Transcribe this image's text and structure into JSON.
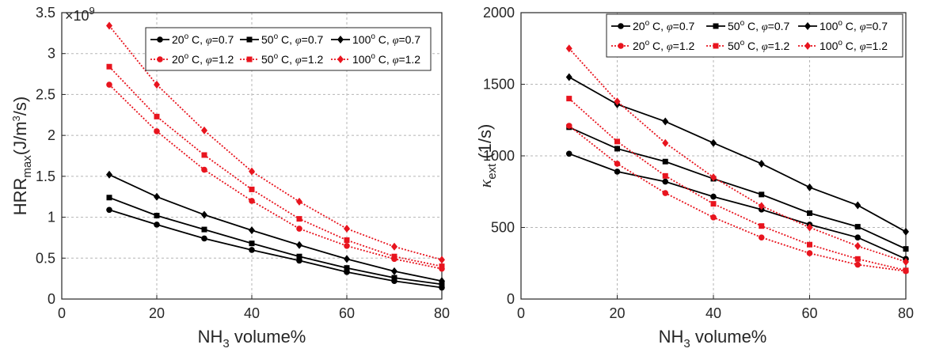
{
  "chart_data": [
    {
      "type": "line",
      "id": "left",
      "x": [
        10,
        20,
        30,
        40,
        50,
        60,
        70,
        80
      ],
      "xlim": [
        0,
        80
      ],
      "ylim": [
        0,
        3.5
      ],
      "xticks": [
        "0",
        "20",
        "40",
        "60",
        "80"
      ],
      "yticks": [
        "0",
        "0.5",
        "1",
        "1.5",
        "2",
        "2.5",
        "3",
        "3.5"
      ],
      "xlabel": {
        "main": "NH",
        "sub": "3",
        "rest": " volume%"
      },
      "ylabel": {
        "main": "HRR",
        "sub": "max",
        "paren_open": "(J/m",
        "sup": "3",
        "paren_close": "/s)"
      },
      "multiplier": {
        "base": "×10",
        "exp": "9"
      },
      "grid": true,
      "legend_position": "top-right",
      "series": [
        {
          "name": "20o C, phi=0.7",
          "temp": "20",
          "phi": "0.7",
          "color": "#000000",
          "style": "solid",
          "marker": "circle",
          "values": [
            1.09,
            0.91,
            0.74,
            0.6,
            0.47,
            0.33,
            0.22,
            0.14
          ]
        },
        {
          "name": "50o C, phi=0.7",
          "temp": "50",
          "phi": "0.7",
          "color": "#000000",
          "style": "solid",
          "marker": "square",
          "values": [
            1.24,
            1.02,
            0.85,
            0.68,
            0.52,
            0.38,
            0.26,
            0.18
          ]
        },
        {
          "name": "100o C, phi=0.7",
          "temp": "100",
          "phi": "0.7",
          "color": "#000000",
          "style": "solid",
          "marker": "diamond",
          "values": [
            1.52,
            1.25,
            1.03,
            0.84,
            0.66,
            0.49,
            0.34,
            0.22
          ]
        },
        {
          "name": "20o C, phi=1.2",
          "temp": "20",
          "phi": "1.2",
          "color": "#e8141e",
          "style": "dotted",
          "marker": "circle",
          "values": [
            2.62,
            2.05,
            1.58,
            1.2,
            0.86,
            0.65,
            0.49,
            0.37
          ]
        },
        {
          "name": "50o C, phi=1.2",
          "temp": "50",
          "phi": "1.2",
          "color": "#e8141e",
          "style": "dotted",
          "marker": "square",
          "values": [
            2.84,
            2.23,
            1.76,
            1.34,
            0.98,
            0.72,
            0.52,
            0.4
          ]
        },
        {
          "name": "100o C, phi=1.2",
          "temp": "100",
          "phi": "1.2",
          "color": "#e8141e",
          "style": "dotted",
          "marker": "diamond",
          "values": [
            3.34,
            2.62,
            2.06,
            1.56,
            1.19,
            0.86,
            0.64,
            0.48
          ]
        }
      ]
    },
    {
      "type": "line",
      "id": "right",
      "x": [
        10,
        20,
        30,
        40,
        50,
        60,
        70,
        80
      ],
      "xlim": [
        0,
        80
      ],
      "ylim": [
        0,
        2000
      ],
      "xticks": [
        "0",
        "20",
        "40",
        "60",
        "80"
      ],
      "yticks": [
        "0",
        "500",
        "1000",
        "1500",
        "2000"
      ],
      "xlabel": {
        "main": "NH",
        "sub": "3",
        "rest": " volume%"
      },
      "ylabel": {
        "main": "κ",
        "sub": "ext",
        "rest": " (1/s)"
      },
      "grid": true,
      "legend_position": "top-right",
      "series": [
        {
          "name": "20o C, phi=0.7",
          "temp": "20",
          "phi": "0.7",
          "color": "#000000",
          "style": "solid",
          "marker": "circle",
          "values": [
            1015,
            890,
            820,
            715,
            625,
            520,
            430,
            280
          ]
        },
        {
          "name": "50o C, phi=0.7",
          "temp": "50",
          "phi": "0.7",
          "color": "#000000",
          "style": "solid",
          "marker": "square",
          "values": [
            1200,
            1050,
            960,
            840,
            730,
            600,
            505,
            350
          ]
        },
        {
          "name": "100o C, phi=0.7",
          "temp": "100",
          "phi": "0.7",
          "color": "#000000",
          "style": "solid",
          "marker": "diamond",
          "values": [
            1550,
            1360,
            1240,
            1090,
            945,
            780,
            655,
            470
          ]
        },
        {
          "name": "20o C, phi=1.2",
          "temp": "20",
          "phi": "1.2",
          "color": "#e8141e",
          "style": "dotted",
          "marker": "circle",
          "values": [
            1210,
            945,
            740,
            570,
            430,
            320,
            240,
            195
          ]
        },
        {
          "name": "50o C, phi=1.2",
          "temp": "50",
          "phi": "1.2",
          "color": "#e8141e",
          "style": "dotted",
          "marker": "square",
          "values": [
            1400,
            1100,
            860,
            665,
            510,
            380,
            280,
            200
          ]
        },
        {
          "name": "100o C, phi=1.2",
          "temp": "100",
          "phi": "1.2",
          "color": "#e8141e",
          "style": "dotted",
          "marker": "diamond",
          "values": [
            1750,
            1380,
            1090,
            850,
            650,
            500,
            370,
            260
          ]
        }
      ]
    }
  ]
}
